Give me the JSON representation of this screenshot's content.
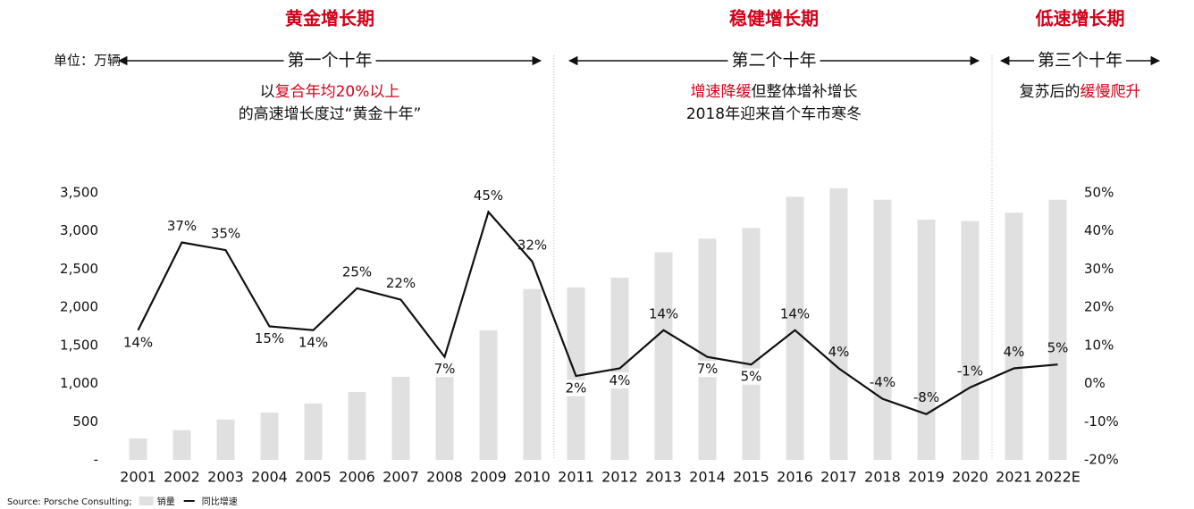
{
  "chart_data": {
    "type": "bar",
    "unit_label": "单位：万辆",
    "categories": [
      "2001",
      "2002",
      "2003",
      "2004",
      "2005",
      "2006",
      "2007",
      "2008",
      "2009",
      "2010",
      "2011",
      "2012",
      "2013",
      "2014",
      "2015",
      "2016",
      "2017",
      "2018",
      "2019",
      "2020",
      "2021",
      "2022E"
    ],
    "series": [
      {
        "name": "销量",
        "type": "bar",
        "color": "#e0e0e0",
        "values": [
          280,
          390,
          530,
          620,
          740,
          890,
          1090,
          1150,
          1700,
          2240,
          2260,
          2390,
          2720,
          2900,
          3040,
          3450,
          3560,
          3410,
          3150,
          3130,
          3240,
          3410
        ]
      },
      {
        "name": "同比增速",
        "type": "line",
        "axis": "y2",
        "color": "#111111",
        "values": [
          14,
          37,
          35,
          15,
          14,
          25,
          22,
          7,
          45,
          32,
          2,
          4,
          14,
          7,
          5,
          14,
          4,
          -4,
          -8,
          -1,
          4,
          5
        ],
        "value_labels": [
          "14%",
          "37%",
          "35%",
          "15%",
          "14%",
          "25%",
          "22%",
          "7%",
          "45%",
          "32%",
          "2%",
          "4%",
          "14%",
          "7%",
          "5%",
          "14%",
          "4%",
          "-4%",
          "-8%",
          "-1%",
          "4%",
          "5%"
        ]
      }
    ],
    "ylim": [
      0,
      3500
    ],
    "yticks": [
      {
        "value": 0,
        "label": "-"
      },
      500,
      {
        "value": 1000,
        "label": "1,000"
      },
      {
        "value": 1500,
        "label": "1,500"
      },
      {
        "value": 2000,
        "label": "2,000"
      },
      {
        "value": 2500,
        "label": "2,500"
      },
      {
        "value": 3000,
        "label": "3,000"
      },
      {
        "value": 3500,
        "label": "3,500"
      }
    ],
    "y2lim": [
      -20,
      50
    ],
    "y2ticks": [
      {
        "value": -20,
        "label": "-20%"
      },
      {
        "value": -10,
        "label": "-10%"
      },
      {
        "value": 0,
        "label": "0%"
      },
      {
        "value": 10,
        "label": "10%"
      },
      {
        "value": 20,
        "label": "20%"
      },
      {
        "value": 30,
        "label": "30%"
      },
      {
        "value": 40,
        "label": "40%"
      },
      {
        "value": 50,
        "label": "50%"
      }
    ],
    "highlight_color": "#d0021b",
    "phases": [
      {
        "title": "黄金增长期",
        "decade": "第一个十年",
        "lines": [
          [
            {
              "text": "以",
              "highlight": false
            },
            {
              "text": "复合年均20%以上",
              "highlight": true
            }
          ],
          [
            {
              "text": "的高速增长度过“黄金十年”",
              "highlight": false
            }
          ]
        ]
      },
      {
        "title": "稳健增长期",
        "decade": "第二个十年",
        "lines": [
          [
            {
              "text": "增速降缓",
              "highlight": true
            },
            {
              "text": "但整体增补增长",
              "highlight": false
            }
          ],
          [
            {
              "text": "2018年迎来首个车市寒冬",
              "highlight": false
            }
          ]
        ]
      },
      {
        "title": "低速增长期",
        "decade": "第三个十年",
        "lines": [
          [
            {
              "text": "复苏后的",
              "highlight": false
            },
            {
              "text": "缓慢爬升",
              "highlight": true
            }
          ]
        ]
      }
    ],
    "source": "Source: Porsche Consulting;"
  }
}
